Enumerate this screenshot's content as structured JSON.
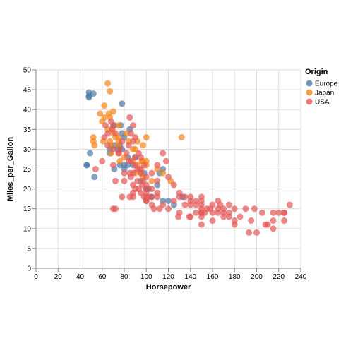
{
  "chart_data": {
    "type": "scatter",
    "xlabel": "Horsepower",
    "ylabel": "Miles_per_Gallon",
    "xlim": [
      0,
      240
    ],
    "ylim": [
      0,
      50
    ],
    "xticks": [
      0,
      20,
      40,
      60,
      80,
      100,
      120,
      140,
      160,
      180,
      200,
      220,
      240
    ],
    "yticks": [
      0,
      5,
      10,
      15,
      20,
      25,
      30,
      35,
      40,
      45,
      50
    ],
    "grid": true,
    "legend": {
      "title": "Origin",
      "placement": "right"
    },
    "series": [
      {
        "name": "Europe",
        "color": "#4c78a8",
        "points": [
          [
            46,
            26
          ],
          [
            46,
            26
          ],
          [
            48,
            43.1
          ],
          [
            48,
            44.3
          ],
          [
            48,
            43.4
          ],
          [
            49,
            29
          ],
          [
            52,
            44
          ],
          [
            53,
            23
          ],
          [
            67,
            29
          ],
          [
            67,
            30
          ],
          [
            71,
            36
          ],
          [
            71,
            31
          ],
          [
            71,
            25
          ],
          [
            74,
            30
          ],
          [
            76,
            26
          ],
          [
            76,
            31
          ],
          [
            77,
            36
          ],
          [
            78,
            34
          ],
          [
            78,
            30
          ],
          [
            78,
            41.5
          ],
          [
            80,
            25
          ],
          [
            80,
            33
          ],
          [
            80,
            26
          ],
          [
            83,
            28
          ],
          [
            83,
            26
          ],
          [
            85,
            35
          ],
          [
            88,
            26
          ],
          [
            90,
            28
          ],
          [
            95,
            22
          ],
          [
            98,
            24
          ],
          [
            100,
            20
          ],
          [
            102,
            20
          ],
          [
            105,
            18
          ],
          [
            110,
            21
          ],
          [
            112,
            24
          ],
          [
            115,
            17
          ],
          [
            120,
            17
          ],
          [
            125,
            16
          ],
          [
            133,
            18
          ],
          [
            115,
            25
          ]
        ]
      },
      {
        "name": "Japan",
        "color": "#f58518",
        "points": [
          [
            52,
            32
          ],
          [
            52,
            33
          ],
          [
            53,
            31
          ],
          [
            58,
            39
          ],
          [
            60,
            37
          ],
          [
            61,
            32
          ],
          [
            62,
            38
          ],
          [
            65,
            35
          ],
          [
            65,
            46.6
          ],
          [
            67,
            44.6
          ],
          [
            67,
            38
          ],
          [
            67,
            32
          ],
          [
            68,
            31
          ],
          [
            68,
            29
          ],
          [
            69,
            35
          ],
          [
            70,
            34
          ],
          [
            70,
            39.5
          ],
          [
            72,
            33
          ],
          [
            75,
            31
          ],
          [
            75,
            33
          ],
          [
            75,
            36
          ],
          [
            75,
            32
          ],
          [
            76,
            27
          ],
          [
            80,
            28
          ],
          [
            84,
            32
          ],
          [
            88,
            27
          ],
          [
            88,
            30
          ],
          [
            90,
            24
          ],
          [
            92,
            32
          ],
          [
            92,
            26
          ],
          [
            94,
            25
          ],
          [
            95,
            24
          ],
          [
            96,
            27
          ],
          [
            97,
            31
          ],
          [
            97,
            27
          ],
          [
            97,
            23
          ],
          [
            100,
            33
          ],
          [
            100,
            27
          ],
          [
            105,
            22
          ],
          [
            110,
            25
          ],
          [
            115,
            24
          ],
          [
            122,
            22
          ],
          [
            132,
            33
          ],
          [
            100,
            26
          ],
          [
            62,
            41
          ],
          [
            66,
            39
          ],
          [
            82,
            34
          ],
          [
            90,
            30
          ]
        ]
      },
      {
        "name": "USA",
        "color": "#e45756",
        "points": [
          [
            130,
            18
          ],
          [
            165,
            15
          ],
          [
            150,
            18
          ],
          [
            150,
            16
          ],
          [
            140,
            17
          ],
          [
            198,
            15
          ],
          [
            220,
            14
          ],
          [
            215,
            14
          ],
          [
            225,
            14
          ],
          [
            190,
            15
          ],
          [
            170,
            15
          ],
          [
            160,
            14
          ],
          [
            150,
            15
          ],
          [
            225,
            14
          ],
          [
            95,
            24
          ],
          [
            97,
            22
          ],
          [
            85,
            18
          ],
          [
            88,
            21
          ],
          [
            100,
            20
          ],
          [
            105,
            18
          ],
          [
            100,
            17
          ],
          [
            88,
            19
          ],
          [
            100,
            18
          ],
          [
            165,
            14
          ],
          [
            175,
            14
          ],
          [
            153,
            14
          ],
          [
            150,
            14
          ],
          [
            180,
            12
          ],
          [
            170,
            13
          ],
          [
            175,
            13
          ],
          [
            110,
            18
          ],
          [
            72,
            22
          ],
          [
            100,
            19
          ],
          [
            88,
            18
          ],
          [
            86,
            23
          ],
          [
            90,
            28
          ],
          [
            70,
            30
          ],
          [
            76,
            30
          ],
          [
            65,
            31
          ],
          [
            69,
            35
          ],
          [
            60,
            27
          ],
          [
            70,
            26
          ],
          [
            95,
            25
          ],
          [
            80,
            24
          ],
          [
            54,
            25
          ],
          [
            75,
            29
          ],
          [
            85,
            24
          ],
          [
            93,
            20
          ],
          [
            110,
            19
          ],
          [
            100,
            17
          ],
          [
            140,
            13
          ],
          [
            150,
            13
          ],
          [
            160,
            12
          ],
          [
            180,
            11
          ],
          [
            129,
            13
          ],
          [
            150,
            11
          ],
          [
            200,
            9
          ],
          [
            208,
            11
          ],
          [
            210,
            11
          ],
          [
            193,
            9
          ],
          [
            230,
            16
          ],
          [
            215,
            12
          ],
          [
            215,
            10
          ],
          [
            225,
            12
          ],
          [
            70,
            15
          ],
          [
            72,
            15
          ],
          [
            105,
            16
          ],
          [
            115,
            16
          ],
          [
            107,
            15
          ],
          [
            120,
            15
          ],
          [
            130,
            14
          ],
          [
            139,
            13
          ],
          [
            145,
            14
          ],
          [
            158,
            15
          ],
          [
            167,
            16
          ],
          [
            150,
            17
          ],
          [
            140,
            16
          ],
          [
            98,
            18
          ],
          [
            90,
            20
          ],
          [
            110,
            22
          ],
          [
            95,
            19
          ],
          [
            100,
            21
          ],
          [
            105,
            20
          ],
          [
            92,
            22
          ],
          [
            88,
            24
          ],
          [
            84,
            27
          ],
          [
            80,
            22
          ],
          [
            78,
            18
          ],
          [
            95,
            28
          ],
          [
            90,
            26
          ],
          [
            86,
            27
          ],
          [
            92,
            25
          ],
          [
            96,
            21
          ],
          [
            102,
            18
          ],
          [
            112,
            15
          ],
          [
            125,
            17
          ],
          [
            135,
            16
          ],
          [
            145,
            17
          ],
          [
            155,
            15
          ],
          [
            165,
            17
          ],
          [
            175,
            16
          ],
          [
            185,
            13
          ],
          [
            195,
            12
          ],
          [
            205,
            14
          ],
          [
            62,
            33
          ],
          [
            63,
            36
          ],
          [
            65,
            34
          ],
          [
            68,
            37
          ],
          [
            72,
            34
          ],
          [
            75,
            29
          ],
          [
            78,
            32
          ],
          [
            82,
            29
          ],
          [
            84,
            31
          ],
          [
            86,
            34
          ],
          [
            88,
            32
          ],
          [
            93,
            29
          ],
          [
            98,
            26
          ],
          [
            100,
            23
          ],
          [
            105,
            24
          ],
          [
            110,
            26
          ],
          [
            115,
            29
          ],
          [
            118,
            27
          ],
          [
            120,
            23
          ],
          [
            125,
            21
          ],
          [
            130,
            19
          ],
          [
            135,
            18
          ],
          [
            140,
            18
          ],
          [
            145,
            16
          ],
          [
            150,
            14
          ],
          [
            160,
            16
          ],
          [
            170,
            14
          ],
          [
            180,
            15
          ],
          [
            85,
            38
          ],
          [
            88,
            36
          ],
          [
            90,
            33
          ],
          [
            70,
            36
          ]
        ]
      }
    ]
  }
}
